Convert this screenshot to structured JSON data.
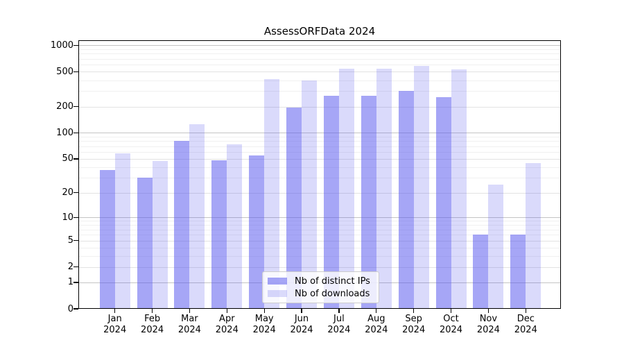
{
  "chart_data": {
    "type": "bar",
    "title": "AssessORFData 2024",
    "xlabel": "",
    "ylabel": "",
    "yscale": "symlog",
    "ylim": [
      0,
      1140
    ],
    "yticks": [
      1000,
      500,
      200,
      100,
      50,
      20,
      10,
      5,
      2,
      1,
      0
    ],
    "minor_gridlines": [
      3,
      4,
      6,
      7,
      8,
      9,
      30,
      40,
      60,
      70,
      80,
      90,
      300,
      400,
      600,
      700,
      800,
      900
    ],
    "grid": true,
    "categories": [
      "Jan",
      "Feb",
      "Mar",
      "Apr",
      "May",
      "Jun",
      "Jul",
      "Aug",
      "Sep",
      "Oct",
      "Nov",
      "Dec"
    ],
    "year_label": "2024",
    "series": [
      {
        "name": "Nb of distinct IPs",
        "color": "rgba(85,85,238,0.52)",
        "values": [
          37,
          30,
          80,
          48,
          55,
          194,
          265,
          265,
          300,
          255,
          6,
          6
        ]
      },
      {
        "name": "Nb of downloads",
        "color": "rgba(85,85,238,0.22)",
        "values": [
          58,
          47,
          125,
          73,
          410,
          397,
          540,
          540,
          580,
          530,
          25,
          45
        ]
      }
    ],
    "legend_position": "lower center"
  },
  "colors": {
    "bar_base": "#5555ee",
    "grid_decade": "#c4c4c4",
    "grid_labeled": "#e2e2e2",
    "grid_minor": "#f0f0f0",
    "axis": "#000000",
    "text": "#000000",
    "legend_border": "#cccccc"
  }
}
